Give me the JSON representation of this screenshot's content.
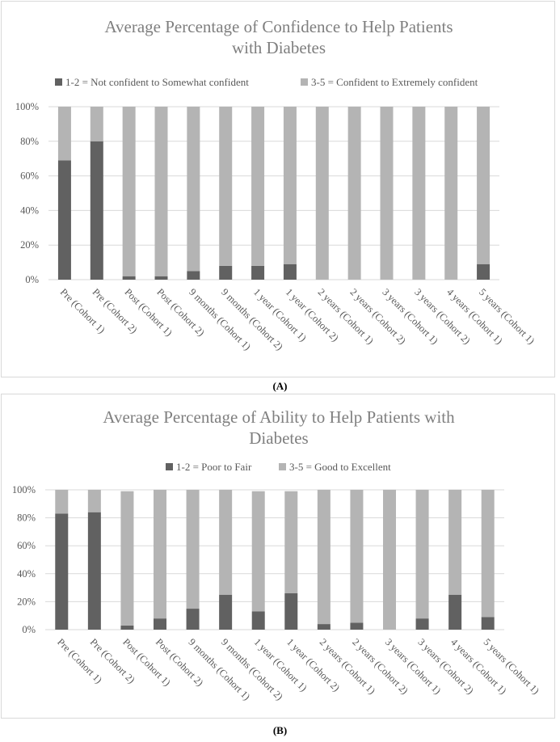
{
  "colors": {
    "dark": "#616161",
    "light": "#b4b4b4",
    "grid": "#d9d9d9",
    "text": "#595959",
    "title": "#7f7f7f"
  },
  "chart_data": [
    {
      "type": "bar",
      "stacked": true,
      "panel_label": "A",
      "title": [
        "Average Percentage of Confidence to Help Patients",
        "with Diabetes"
      ],
      "categories": [
        "Pre (Cohort 1)",
        "Pre (Cohort 2)",
        "Post (Cohort 1)",
        "Post (Cohort 2)",
        "9 months (Cohort 1)",
        "9 months (Cohort 2)",
        "1 year (Cohort 1)",
        "1 year (Cohort 2)",
        "2 years (Cohort 1)",
        "2 years (Cohort 2)",
        "3 years (Cohort 1)",
        "3 years (Cohort 2)",
        "4 years (Cohort 1)",
        "5 years (Cohort 1)"
      ],
      "series": [
        {
          "name": "1-2 = Not confident to Somewhat confident",
          "color": "#616161",
          "values": [
            69,
            80,
            2,
            2,
            5,
            8,
            8,
            9,
            0,
            0,
            0,
            0,
            0,
            9
          ]
        },
        {
          "name": "3-5 = Confident to Extremely confident",
          "color": "#b4b4b4",
          "values": [
            31,
            20,
            98,
            98,
            95,
            92,
            92,
            91,
            100,
            100,
            100,
            100,
            100,
            91
          ]
        }
      ],
      "yticks": [
        "0%",
        "20%",
        "40%",
        "60%",
        "80%",
        "100%"
      ],
      "ylim": [
        0,
        100
      ],
      "grid": true,
      "legend": "top"
    },
    {
      "type": "bar",
      "stacked": true,
      "panel_label": "B",
      "title": [
        "Average Percentage of Ability to Help Patients with",
        "Diabetes"
      ],
      "categories": [
        "Pre (Cohort 1)",
        "Pre (Cohort 2)",
        "Post (Cohort 1)",
        "Post (Cohort 2)",
        "9 months (Cohort 1)",
        "9 months (Cohort 2)",
        "1 year (Cohort 1)",
        "1 year (Cohort 2)",
        "2 years (Cohort 1)",
        "2 years (Cohort 2)",
        "3 years (Cohort 1)",
        "3 years (Cohort 2)",
        "4 years (Cohort 1)",
        "5 years (Cohort 1)"
      ],
      "series": [
        {
          "name": "1-2 = Poor to Fair",
          "color": "#616161",
          "values": [
            83,
            84,
            3,
            8,
            15,
            25,
            13,
            26,
            4,
            5,
            0,
            8,
            25,
            9
          ]
        },
        {
          "name": "3-5 = Good to Excellent",
          "color": "#b4b4b4",
          "values": [
            17,
            16,
            96,
            92,
            85,
            75,
            86,
            73,
            96,
            95,
            100,
            92,
            75,
            91
          ]
        }
      ],
      "yticks": [
        "0%",
        "20%",
        "40%",
        "60%",
        "80%",
        "100%"
      ],
      "ylim": [
        0,
        100
      ],
      "grid": true,
      "legend": "top"
    }
  ],
  "captions": {
    "a": "(A)",
    "b": "(B)"
  }
}
